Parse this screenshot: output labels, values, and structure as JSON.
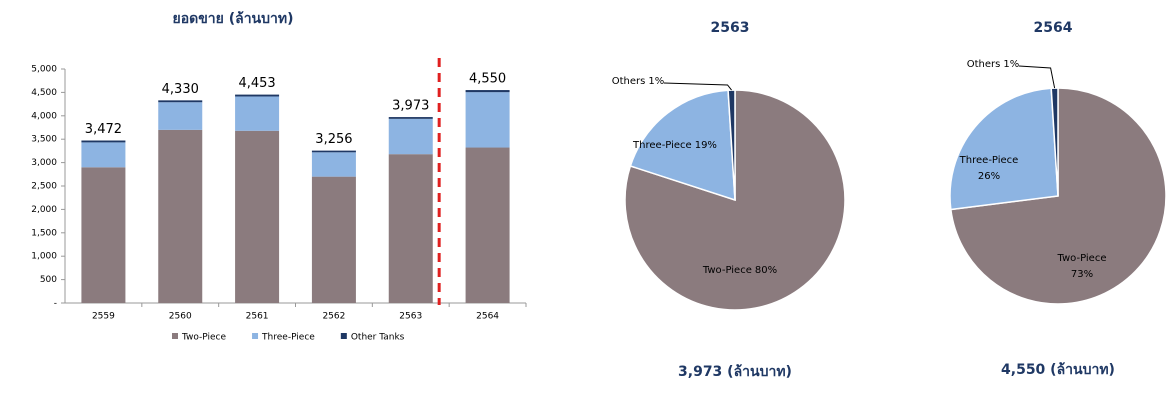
{
  "chart_data": [
    {
      "type": "bar",
      "title": "ยอดขาย (ล้านบาท)",
      "categories": [
        "2559",
        "2560",
        "2561",
        "2562",
        "2563",
        "2564"
      ],
      "series": [
        {
          "name": "Two-Piece",
          "color": "#8b7b7e",
          "values": [
            2900,
            3700,
            3680,
            2700,
            3180,
            3322
          ]
        },
        {
          "name": "Three-Piece",
          "color": "#8db4e2",
          "values": [
            532,
            590,
            733,
            520,
            755,
            1183
          ]
        },
        {
          "name": "Other Tanks",
          "color": "#1f3864",
          "values": [
            40,
            40,
            40,
            36,
            38,
            45
          ]
        }
      ],
      "totals": [
        3472,
        4330,
        4453,
        3256,
        3973,
        4550
      ],
      "total_labels": [
        "3,472",
        "4,330",
        "4,453",
        "3,256",
        "3,973",
        "4,550"
      ],
      "ylim": [
        0,
        5000
      ],
      "yticks": [
        {
          "value": 0,
          "label": "-"
        },
        500,
        {
          "value": 1000,
          "label": "1,000"
        },
        {
          "value": 1500,
          "label": "1,500"
        },
        {
          "value": 2000,
          "label": "2,000"
        },
        {
          "value": 2500,
          "label": "2,500"
        },
        {
          "value": 3000,
          "label": "3,000"
        },
        {
          "value": 3500,
          "label": "3,500"
        },
        {
          "value": 4000,
          "label": "4,000"
        },
        {
          "value": 4500,
          "label": "4,500"
        },
        {
          "value": 5000,
          "label": "5,000"
        }
      ],
      "legend": "bottom"
    },
    {
      "type": "pie",
      "title": "2563",
      "caption": "3,973 (ล้านบาท)",
      "categories": [
        "Two-Piece",
        "Three-Piece",
        "Others"
      ],
      "values": [
        80,
        19,
        1
      ],
      "value_labels": [
        "80%",
        "19%",
        "1%"
      ],
      "colors": [
        "#8b7b7e",
        "#8db4e2",
        "#1f3864"
      ]
    },
    {
      "type": "pie",
      "title": "2564",
      "caption": "4,550 (ล้านบาท)",
      "categories": [
        "Two-Piece",
        "Three-Piece",
        "Others"
      ],
      "values": [
        73,
        26,
        1
      ],
      "value_labels": [
        "73%",
        "26%",
        "1%"
      ],
      "colors": [
        "#8b7b7e",
        "#8db4e2",
        "#1f3864"
      ]
    }
  ]
}
